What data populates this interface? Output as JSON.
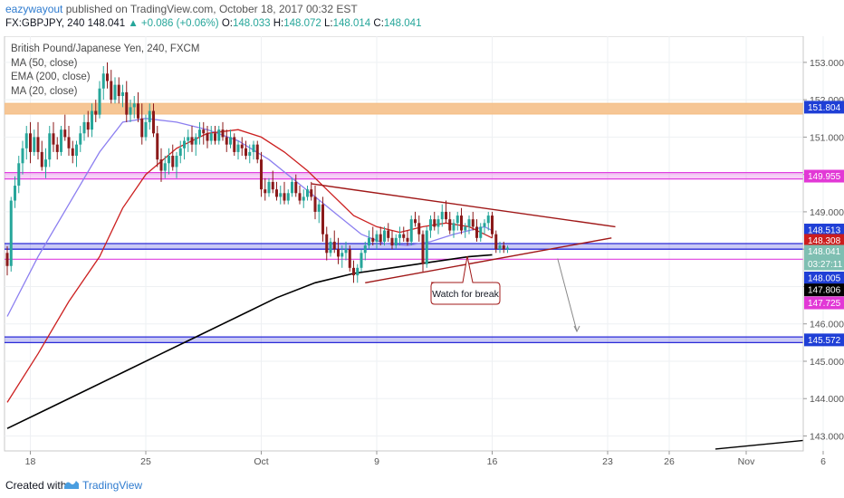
{
  "header": {
    "author": "eazywayout",
    "published": "published on TradingView.com, October 18, 2017 00:32 EST",
    "symbol": "FX:GBPJPY, 240",
    "last": "148.041",
    "change": "▲ +0.086 (+0.06%)",
    "o_label": "O:",
    "o_value": "148.033",
    "h_label": "H:",
    "h_value": "148.072",
    "l_label": "L:",
    "l_value": "148.014",
    "c_label": "C:",
    "c_value": "148.041"
  },
  "legend": {
    "title": "British Pound/Japanese Yen, 240, FXCM",
    "ma50": "MA (50, close)",
    "ema200": "EMA (200, close)",
    "ma20": "MA (20, close)"
  },
  "annotation": {
    "text": "Watch for break"
  },
  "footer": {
    "created": "Created with",
    "brand": "TradingView"
  },
  "colors": {
    "bull": "#26a69a",
    "bear": "#8b1a1a",
    "ma50": "#8c7ff0",
    "ema200": "#000000",
    "ma20": "#cc2020",
    "trendline": "#a01818",
    "zone_orange": "#f5c08a",
    "zone_magenta": "#e040e0",
    "zone_blue": "#2a2ad8"
  },
  "chart_data": {
    "type": "candlestick",
    "symbol": "FX:GBPJPY",
    "timeframe": "240",
    "ylim": [
      142.6,
      153.7
    ],
    "y_ticks": [
      143.0,
      144.0,
      145.0,
      146.0,
      147.0,
      148.0,
      149.0,
      150.0,
      151.0,
      152.0,
      153.0
    ],
    "y_tick_labels": [
      "143.000",
      "144.000",
      "145.000",
      "146.000",
      "147.000",
      "148.000",
      "149.000",
      "150.000",
      "151.000",
      "152.000",
      "153.000"
    ],
    "x_tick_labels": [
      "18",
      "25",
      "Oct",
      "9",
      "16",
      "23",
      "26",
      "Nov",
      "6"
    ],
    "x_tick_bar_index": [
      6,
      36,
      66,
      96,
      126,
      156,
      172,
      192,
      212
    ],
    "price_tags": [
      {
        "label": "151.804",
        "bg": "#1f3fd6"
      },
      {
        "label": "149.955",
        "bg": "#e238d6"
      },
      {
        "label": "148.513",
        "bg": "#1f3fd6"
      },
      {
        "label": "148.308",
        "bg": "#cc1d1d"
      },
      {
        "label": "148.041",
        "bg": "#7fbfb2"
      },
      {
        "label": "03:27:11",
        "bg": "#7fbfb2"
      },
      {
        "label": "148.005",
        "bg": "#1f3fd6"
      },
      {
        "label": "147.806",
        "bg": "#000000"
      },
      {
        "label": "147.725",
        "bg": "#e238d6"
      },
      {
        "label": "145.572",
        "bg": "#1f3fd6"
      }
    ],
    "zones": [
      {
        "type": "band",
        "y0": 151.62,
        "y1": 151.9,
        "color": "orange"
      },
      {
        "type": "band",
        "y0": 149.88,
        "y1": 150.05,
        "color": "magenta"
      },
      {
        "type": "band",
        "y0": 148.0,
        "y1": 148.15,
        "color": "blue"
      },
      {
        "type": "line",
        "y": 147.73,
        "color": "magenta"
      },
      {
        "type": "band",
        "y0": 145.5,
        "y1": 145.65,
        "color": "blue"
      }
    ],
    "trendlines": [
      {
        "name": "upper",
        "x0": 79,
        "y0": 149.75,
        "x1": 158,
        "y1": 148.6
      },
      {
        "name": "lower",
        "x0": 93,
        "y0": 147.1,
        "x1": 157,
        "y1": 148.3
      },
      {
        "name": "target-arrow",
        "x0": 143,
        "y0": 147.75,
        "x1": 148,
        "y1": 145.8
      }
    ],
    "candles": [
      [
        147.9,
        148.08,
        147.3,
        147.55
      ],
      [
        147.55,
        149.4,
        147.4,
        149.3
      ],
      [
        149.3,
        149.95,
        149.1,
        149.7
      ],
      [
        149.7,
        150.5,
        149.5,
        150.3
      ],
      [
        150.3,
        150.9,
        150.0,
        150.7
      ],
      [
        150.7,
        151.3,
        150.4,
        151.1
      ],
      [
        151.1,
        151.4,
        150.3,
        150.6
      ],
      [
        150.6,
        151.2,
        150.5,
        151.0
      ],
      [
        151.0,
        151.4,
        150.4,
        150.6
      ],
      [
        150.6,
        150.9,
        150.1,
        150.2
      ],
      [
        150.2,
        150.7,
        149.9,
        150.4
      ],
      [
        150.4,
        151.3,
        150.2,
        151.1
      ],
      [
        151.1,
        151.4,
        150.6,
        150.8
      ],
      [
        150.8,
        151.0,
        150.4,
        150.6
      ],
      [
        150.6,
        151.3,
        150.5,
        151.2
      ],
      [
        151.2,
        151.6,
        150.9,
        151.0
      ],
      [
        151.0,
        151.3,
        150.5,
        150.7
      ],
      [
        150.7,
        150.9,
        150.3,
        150.5
      ],
      [
        150.5,
        150.9,
        150.2,
        150.8
      ],
      [
        150.8,
        151.3,
        150.6,
        151.1
      ],
      [
        151.1,
        151.6,
        150.9,
        151.4
      ],
      [
        151.4,
        151.7,
        151.0,
        151.2
      ],
      [
        151.2,
        151.9,
        151.0,
        151.7
      ],
      [
        151.7,
        152.0,
        151.4,
        151.6
      ],
      [
        151.6,
        152.5,
        151.5,
        152.3
      ],
      [
        152.3,
        152.9,
        152.0,
        152.7
      ],
      [
        152.7,
        153.0,
        152.3,
        152.5
      ],
      [
        152.5,
        152.8,
        151.9,
        152.0
      ],
      [
        152.0,
        152.6,
        151.9,
        152.4
      ],
      [
        152.4,
        152.6,
        151.9,
        152.1
      ],
      [
        152.1,
        152.4,
        151.8,
        152.2
      ],
      [
        152.2,
        152.5,
        151.4,
        151.6
      ],
      [
        151.6,
        152.0,
        151.4,
        151.8
      ],
      [
        151.8,
        152.1,
        151.5,
        151.9
      ],
      [
        151.9,
        152.2,
        151.4,
        151.5
      ],
      [
        151.5,
        151.9,
        150.8,
        151.0
      ],
      [
        151.0,
        151.6,
        150.9,
        151.4
      ],
      [
        151.4,
        151.9,
        151.2,
        151.7
      ],
      [
        151.7,
        151.9,
        151.0,
        151.1
      ],
      [
        151.1,
        151.3,
        150.2,
        150.4
      ],
      [
        150.4,
        150.7,
        149.8,
        150.1
      ],
      [
        150.1,
        150.5,
        149.9,
        150.3
      ],
      [
        150.3,
        150.7,
        150.0,
        150.5
      ],
      [
        150.5,
        150.8,
        150.1,
        150.2
      ],
      [
        150.2,
        150.6,
        149.9,
        150.5
      ],
      [
        150.5,
        150.9,
        150.3,
        150.7
      ],
      [
        150.7,
        151.0,
        150.4,
        150.9
      ],
      [
        150.9,
        151.2,
        150.6,
        151.0
      ],
      [
        151.0,
        151.3,
        150.6,
        150.8
      ],
      [
        150.8,
        151.1,
        150.5,
        151.0
      ],
      [
        151.0,
        151.4,
        150.8,
        151.2
      ],
      [
        151.2,
        151.4,
        150.8,
        151.1
      ],
      [
        151.1,
        151.3,
        150.7,
        150.9
      ],
      [
        150.9,
        151.3,
        150.8,
        151.1
      ],
      [
        151.1,
        151.3,
        150.8,
        150.9
      ],
      [
        150.9,
        151.3,
        150.8,
        151.2
      ],
      [
        151.2,
        151.4,
        150.9,
        151.0
      ],
      [
        151.0,
        151.2,
        150.6,
        150.8
      ],
      [
        150.8,
        151.2,
        150.7,
        151.0
      ],
      [
        151.0,
        151.1,
        150.5,
        150.6
      ],
      [
        150.6,
        150.9,
        150.4,
        150.8
      ],
      [
        150.8,
        151.0,
        150.5,
        150.7
      ],
      [
        150.7,
        150.9,
        150.4,
        150.5
      ],
      [
        150.5,
        150.8,
        150.3,
        150.6
      ],
      [
        150.6,
        150.9,
        150.4,
        150.8
      ],
      [
        150.8,
        150.9,
        150.3,
        150.4
      ],
      [
        150.4,
        150.6,
        149.4,
        149.6
      ],
      [
        149.6,
        149.9,
        149.3,
        149.5
      ],
      [
        149.5,
        149.9,
        149.4,
        149.8
      ],
      [
        149.8,
        150.1,
        149.5,
        149.6
      ],
      [
        149.6,
        149.8,
        149.3,
        149.4
      ],
      [
        149.4,
        149.7,
        149.2,
        149.5
      ],
      [
        149.5,
        149.8,
        149.2,
        149.3
      ],
      [
        149.3,
        149.6,
        149.2,
        149.5
      ],
      [
        149.5,
        149.9,
        149.4,
        149.8
      ],
      [
        149.8,
        150.0,
        149.4,
        149.5
      ],
      [
        149.5,
        149.7,
        149.2,
        149.3
      ],
      [
        149.3,
        149.6,
        149.1,
        149.4
      ],
      [
        149.4,
        149.7,
        149.3,
        149.6
      ],
      [
        149.6,
        149.8,
        149.3,
        149.4
      ],
      [
        149.4,
        149.7,
        148.8,
        149.0
      ],
      [
        149.0,
        149.3,
        148.7,
        149.2
      ],
      [
        149.2,
        149.4,
        148.2,
        148.4
      ],
      [
        148.4,
        148.6,
        147.7,
        147.9
      ],
      [
        147.9,
        148.3,
        147.8,
        148.2
      ],
      [
        148.2,
        148.5,
        147.9,
        148.0
      ],
      [
        148.0,
        148.3,
        147.6,
        147.8
      ],
      [
        147.8,
        148.1,
        147.5,
        147.9
      ],
      [
        147.9,
        148.2,
        147.7,
        148.0
      ],
      [
        148.0,
        148.1,
        147.4,
        147.5
      ],
      [
        147.5,
        147.7,
        147.1,
        147.3
      ],
      [
        147.3,
        147.6,
        147.1,
        147.5
      ],
      [
        147.5,
        148.0,
        147.4,
        147.9
      ],
      [
        147.9,
        148.2,
        147.7,
        148.1
      ],
      [
        148.1,
        148.5,
        148.0,
        148.3
      ],
      [
        148.3,
        148.6,
        148.1,
        148.2
      ],
      [
        148.2,
        148.5,
        148.0,
        148.4
      ],
      [
        148.4,
        148.6,
        148.1,
        148.2
      ],
      [
        148.2,
        148.6,
        148.1,
        148.5
      ],
      [
        148.5,
        148.7,
        148.2,
        148.3
      ],
      [
        148.3,
        148.5,
        148.0,
        148.1
      ],
      [
        148.1,
        148.4,
        148.0,
        148.3
      ],
      [
        148.3,
        148.6,
        148.1,
        148.4
      ],
      [
        148.4,
        148.6,
        148.2,
        148.3
      ],
      [
        148.3,
        148.5,
        148.1,
        148.2
      ],
      [
        148.2,
        148.9,
        148.1,
        148.8
      ],
      [
        148.8,
        149.0,
        148.6,
        148.7
      ],
      [
        148.7,
        148.9,
        148.2,
        148.4
      ],
      [
        148.4,
        148.5,
        147.4,
        147.6
      ],
      [
        147.6,
        148.6,
        147.5,
        148.5
      ],
      [
        148.5,
        148.9,
        148.3,
        148.8
      ],
      [
        148.8,
        149.0,
        148.5,
        148.6
      ],
      [
        148.6,
        148.9,
        148.4,
        148.8
      ],
      [
        148.8,
        149.2,
        148.6,
        149.0
      ],
      [
        149.0,
        149.3,
        148.7,
        148.8
      ],
      [
        148.8,
        149.0,
        148.4,
        148.5
      ],
      [
        148.5,
        148.8,
        148.3,
        148.7
      ],
      [
        148.7,
        149.0,
        148.5,
        148.9
      ],
      [
        148.9,
        149.1,
        148.4,
        148.5
      ],
      [
        148.5,
        148.7,
        148.3,
        148.6
      ],
      [
        148.6,
        148.9,
        148.4,
        148.8
      ],
      [
        148.8,
        149.0,
        148.5,
        148.6
      ],
      [
        148.6,
        148.8,
        148.2,
        148.3
      ],
      [
        148.3,
        148.7,
        148.2,
        148.6
      ],
      [
        148.6,
        148.8,
        148.4,
        148.7
      ],
      [
        148.7,
        149.0,
        148.5,
        148.9
      ],
      [
        148.9,
        149.0,
        148.3,
        148.4
      ],
      [
        148.4,
        148.5,
        147.9,
        148.0
      ],
      [
        148.0,
        148.2,
        147.9,
        148.1
      ],
      [
        148.1,
        148.2,
        147.9,
        148.0
      ],
      [
        148.0,
        148.1,
        147.9,
        148.04
      ]
    ],
    "series": [
      {
        "name": "MA (50, close)",
        "color": "#8c7ff0",
        "points": [
          [
            0,
            146.2
          ],
          [
            8,
            147.8
          ],
          [
            16,
            149.2
          ],
          [
            24,
            150.6
          ],
          [
            30,
            151.4
          ],
          [
            36,
            151.5
          ],
          [
            44,
            151.4
          ],
          [
            52,
            151.2
          ],
          [
            60,
            150.9
          ],
          [
            68,
            150.4
          ],
          [
            74,
            149.9
          ],
          [
            80,
            149.4
          ],
          [
            86,
            148.9
          ],
          [
            92,
            148.4
          ],
          [
            98,
            148.15
          ],
          [
            104,
            148.1
          ],
          [
            110,
            148.2
          ],
          [
            116,
            148.4
          ],
          [
            120,
            148.5
          ],
          [
            124,
            148.6
          ],
          [
            126,
            148.5
          ]
        ]
      },
      {
        "name": "EMA (200, close)",
        "color": "#000000",
        "points": [
          [
            0,
            143.2
          ],
          [
            10,
            143.7
          ],
          [
            20,
            144.2
          ],
          [
            30,
            144.7
          ],
          [
            40,
            145.2
          ],
          [
            50,
            145.7
          ],
          [
            60,
            146.2
          ],
          [
            70,
            146.7
          ],
          [
            80,
            147.1
          ],
          [
            90,
            147.35
          ],
          [
            100,
            147.5
          ],
          [
            110,
            147.65
          ],
          [
            120,
            147.8
          ],
          [
            126,
            147.85
          ]
        ]
      },
      {
        "name": "MA (20, close)",
        "color": "#cc2020",
        "points": [
          [
            0,
            143.9
          ],
          [
            8,
            145.2
          ],
          [
            16,
            146.6
          ],
          [
            24,
            147.8
          ],
          [
            30,
            149.1
          ],
          [
            36,
            150.0
          ],
          [
            44,
            150.7
          ],
          [
            52,
            151.1
          ],
          [
            60,
            151.2
          ],
          [
            66,
            151.0
          ],
          [
            72,
            150.6
          ],
          [
            78,
            150.1
          ],
          [
            84,
            149.5
          ],
          [
            90,
            148.9
          ],
          [
            96,
            148.6
          ],
          [
            102,
            148.45
          ],
          [
            108,
            148.6
          ],
          [
            114,
            148.7
          ],
          [
            120,
            148.6
          ],
          [
            124,
            148.4
          ],
          [
            126,
            148.3
          ]
        ]
      }
    ]
  }
}
